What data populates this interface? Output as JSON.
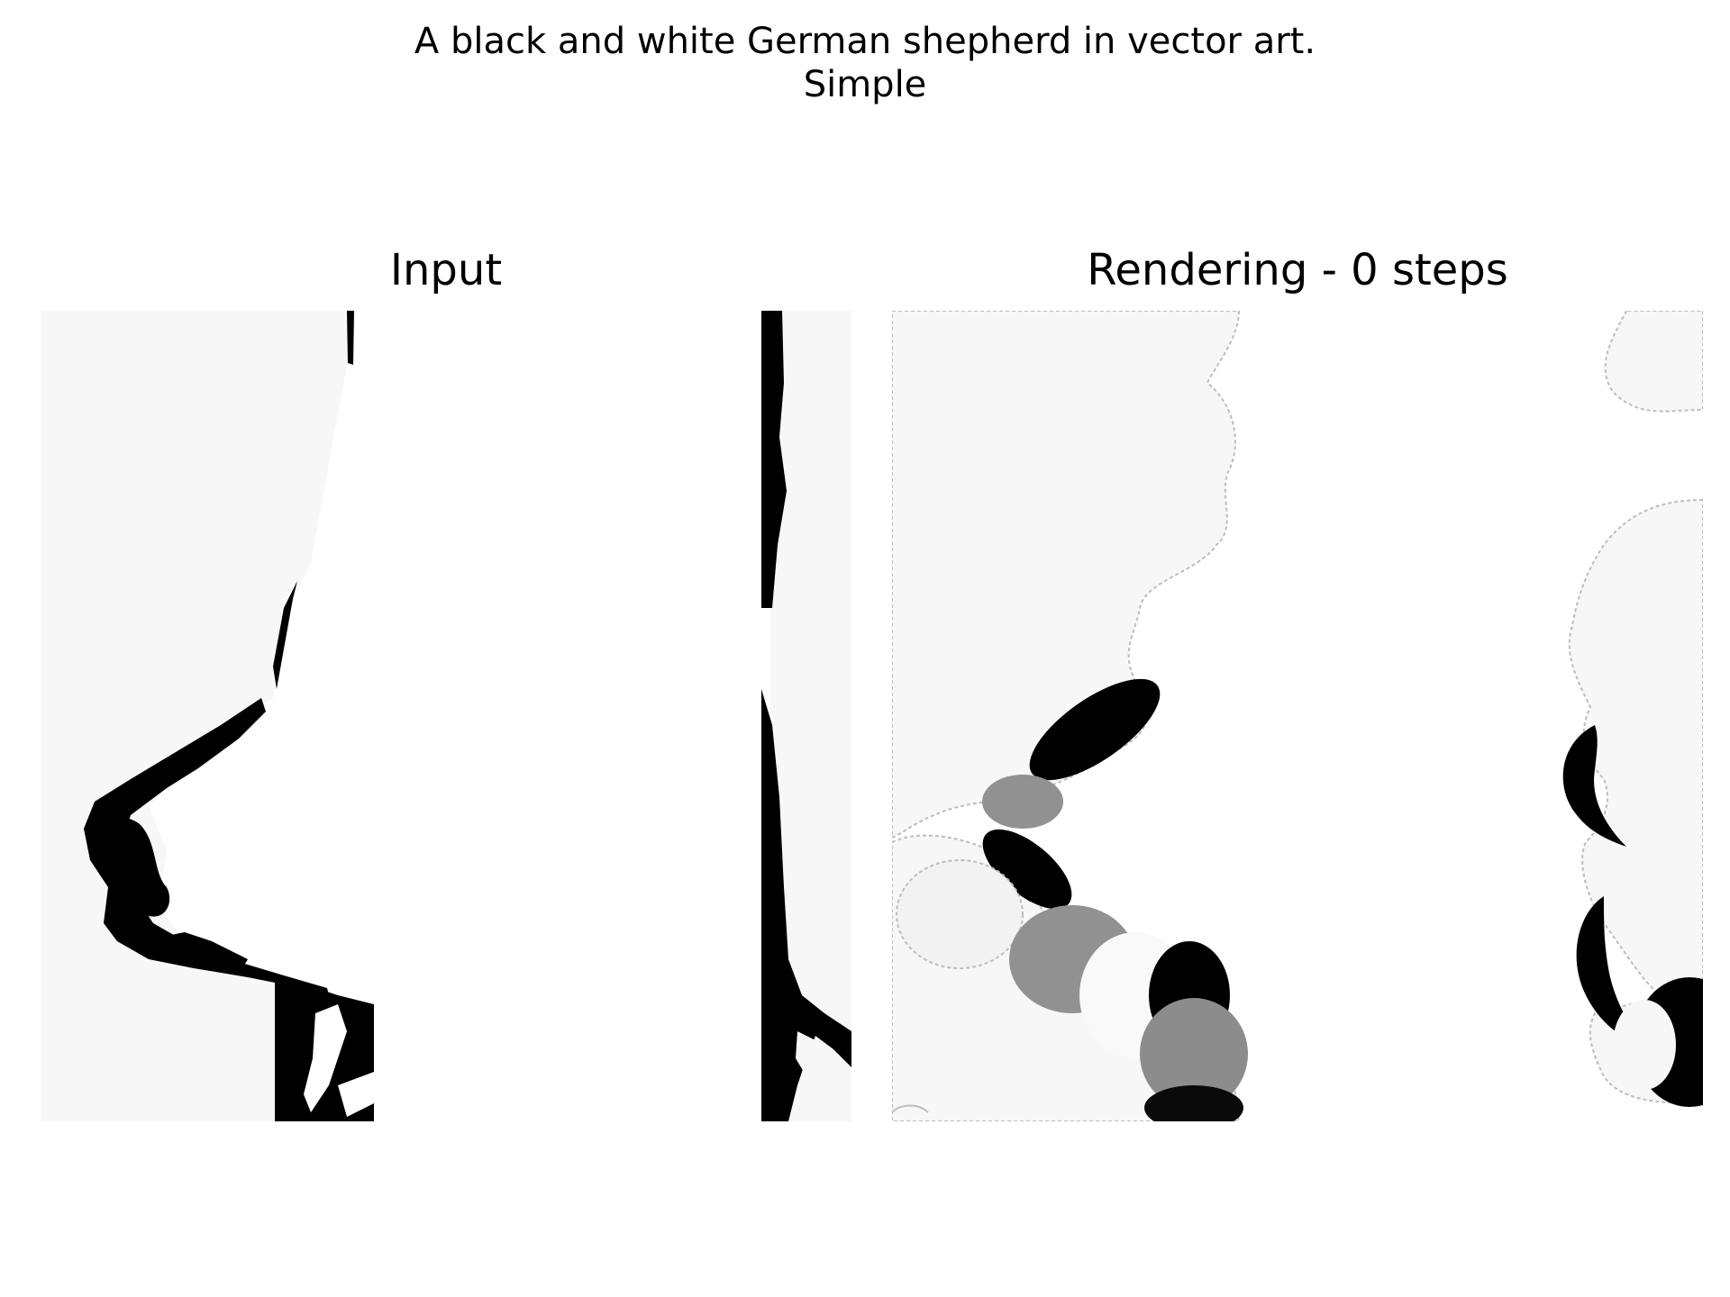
{
  "figure": {
    "title": "A black and white German shepherd in vector art.\nSimple",
    "panels": [
      {
        "title": "Input"
      },
      {
        "title": "Rendering - 0 steps"
      }
    ]
  },
  "colors": {
    "background": "#ffffff",
    "panel_fill": "#f7f7f7",
    "ink": "#000000",
    "mid_gray": "#919191",
    "outline_gray": "#bdbdbd"
  }
}
